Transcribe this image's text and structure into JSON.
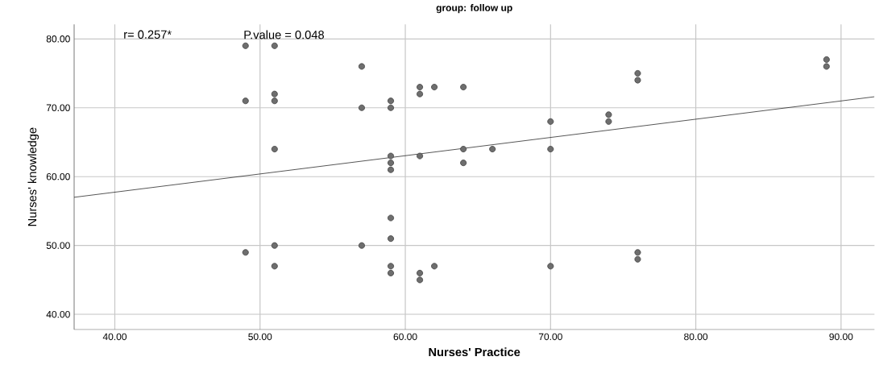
{
  "chart_data": {
    "type": "scatter",
    "title": "group: follow up",
    "xlabel": "Nurses' Practice",
    "ylabel": "Nurses' knowledge",
    "annotations": [
      "r= 0.257*",
      "P.value = 0.048"
    ],
    "xlim": [
      37.2,
      92.3
    ],
    "ylim": [
      37.8,
      82.1
    ],
    "xticks": [
      {
        "value": 40,
        "label": "40.00"
      },
      {
        "value": 50,
        "label": "50.00"
      },
      {
        "value": 60,
        "label": "60.00"
      },
      {
        "value": 70,
        "label": "70.00"
      },
      {
        "value": 80,
        "label": "80.00"
      },
      {
        "value": 90,
        "label": "90.00"
      }
    ],
    "yticks": [
      {
        "value": 40,
        "label": "40.00"
      },
      {
        "value": 50,
        "label": "50.00"
      },
      {
        "value": 60,
        "label": "60.00"
      },
      {
        "value": 70,
        "label": "70.00"
      },
      {
        "value": 80,
        "label": "80.00"
      }
    ],
    "grid": true,
    "series": [
      {
        "color": "#6e6e6e",
        "marker": "circle",
        "x": [
          49,
          49,
          49,
          51,
          51,
          51,
          51,
          51,
          51,
          57,
          57,
          57,
          59,
          59,
          59,
          59,
          59,
          59,
          59,
          59,
          59,
          61,
          61,
          61,
          61,
          61,
          62,
          62,
          64,
          64,
          64,
          66,
          70,
          70,
          70,
          74,
          74,
          76,
          76,
          76,
          76,
          89,
          89
        ],
        "values": [
          79,
          71,
          49,
          79,
          72,
          71,
          64,
          50,
          47,
          76,
          70,
          50,
          71,
          70,
          63,
          62,
          61,
          54,
          51,
          47,
          46,
          73,
          72,
          63,
          46,
          45,
          73,
          47,
          73,
          64,
          62,
          64,
          68,
          64,
          47,
          69,
          68,
          75,
          74,
          49,
          48,
          77,
          76
        ]
      },
      {
        "type": "line",
        "color": "#000000",
        "marker": "none",
        "x": [
          37.2,
          92.3
        ],
        "values": [
          57.0,
          71.6
        ]
      }
    ]
  }
}
